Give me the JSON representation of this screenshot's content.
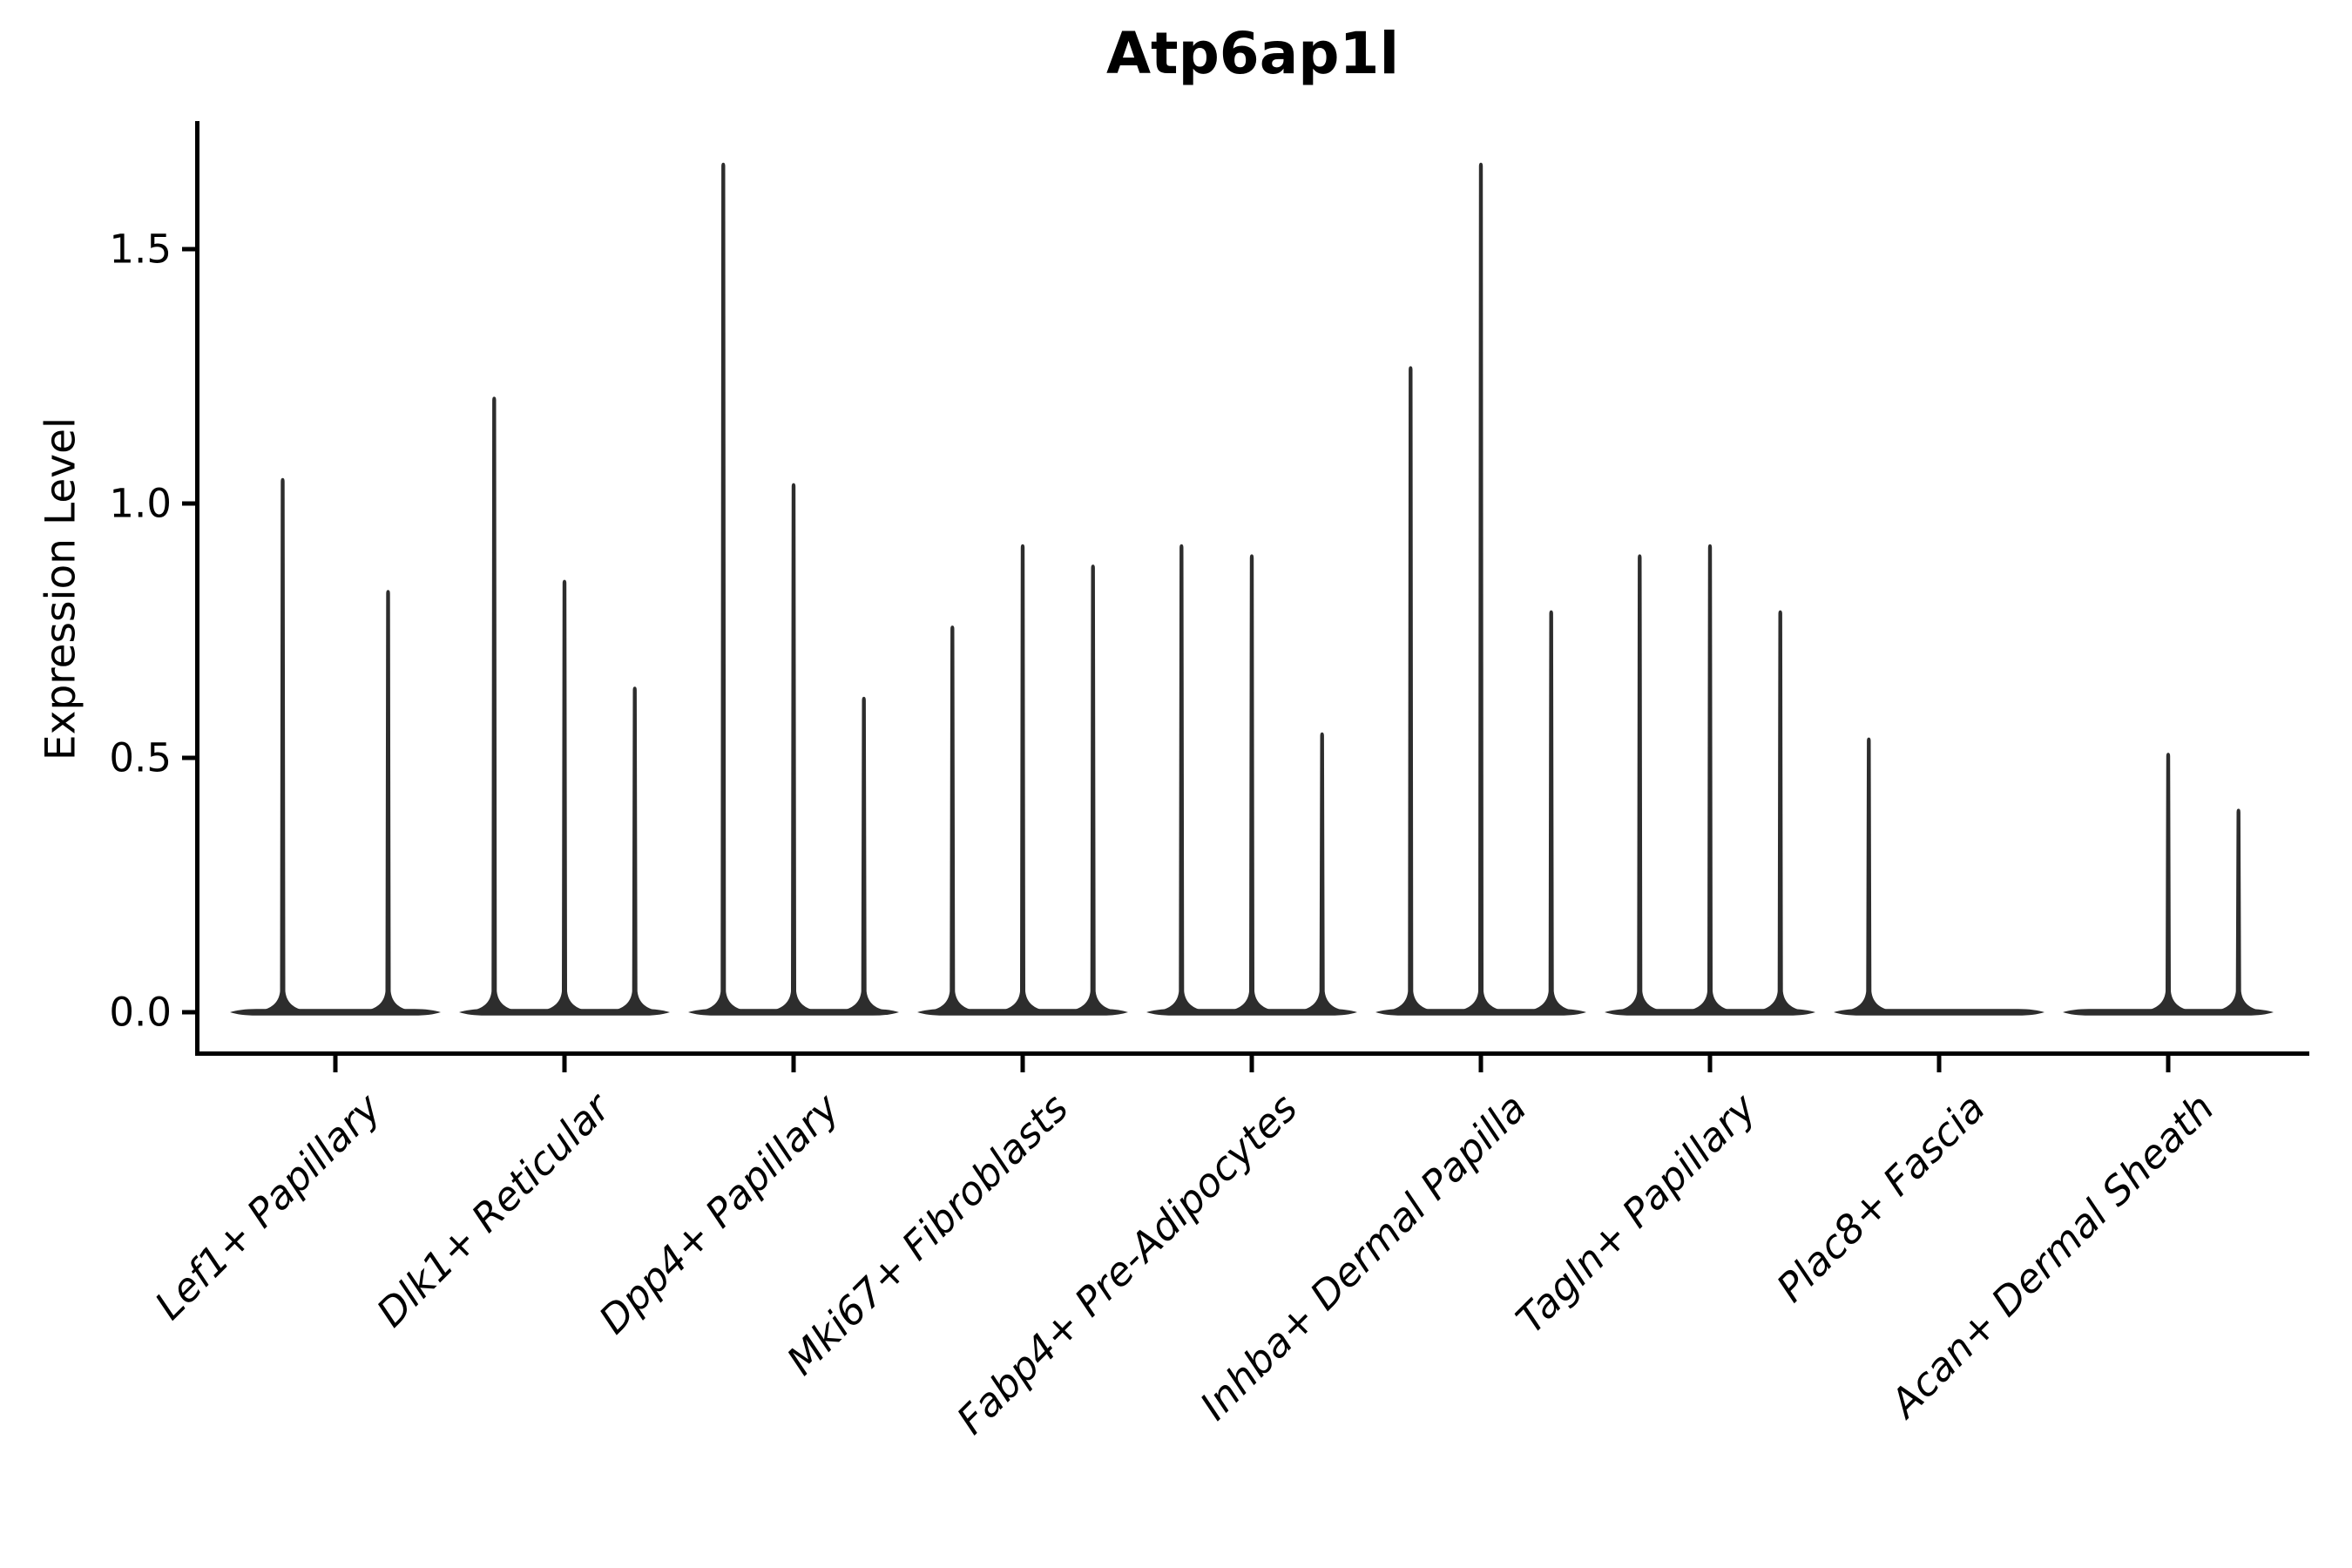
{
  "chart_data": {
    "type": "violin",
    "title": "Atp6ap1l",
    "ylabel": "Expression Level",
    "xlabel": "",
    "grid": false,
    "legend": "none",
    "ylim": [
      0,
      1.75
    ],
    "yticks": [
      {
        "value": 0.0,
        "label": "0.0"
      },
      {
        "value": 0.5,
        "label": "0.5"
      },
      {
        "value": 1.0,
        "label": "1.0"
      },
      {
        "value": 1.5,
        "label": "1.5"
      }
    ],
    "categories": [
      "Lef1+ Papillary",
      "Dlk1+ Reticular",
      "Dpp4+ Papillary",
      "Mki67+ Fibroblasts",
      "Fabp4+ Pre-Adipocytes",
      "Inhba+ Dermal Papilla",
      "Tagln+ Papillary",
      "Plac8+ Fascia",
      "Acan+ Dermal Sheath"
    ],
    "groups": [
      {
        "category": "Lef1+ Papillary",
        "violins": [
          {
            "dx": -60.5,
            "max": 1.05
          },
          {
            "dx": 60.5,
            "max": 0.83
          }
        ]
      },
      {
        "category": "Dlk1+ Reticular",
        "violins": [
          {
            "dx": -80.7,
            "max": 1.21
          },
          {
            "dx": 0,
            "max": 0.85
          },
          {
            "dx": 80.7,
            "max": 0.64
          }
        ]
      },
      {
        "category": "Dpp4+ Papillary",
        "violins": [
          {
            "dx": -80.7,
            "max": 1.67
          },
          {
            "dx": 0,
            "max": 1.04
          },
          {
            "dx": 80.7,
            "max": 0.62
          }
        ]
      },
      {
        "category": "Mki67+ Fibroblasts",
        "violins": [
          {
            "dx": -80.7,
            "max": 0.76
          },
          {
            "dx": 0,
            "max": 0.92
          },
          {
            "dx": 80.7,
            "max": 0.88
          }
        ]
      },
      {
        "category": "Fabp4+ Pre-Adipocytes",
        "violins": [
          {
            "dx": -80.7,
            "max": 0.92
          },
          {
            "dx": 0,
            "max": 0.9
          },
          {
            "dx": 80.7,
            "max": 0.55
          }
        ]
      },
      {
        "category": "Inhba+ Dermal Papilla",
        "violins": [
          {
            "dx": -80.7,
            "max": 1.27
          },
          {
            "dx": 0,
            "max": 1.67
          },
          {
            "dx": 80.7,
            "max": 0.79
          }
        ]
      },
      {
        "category": "Tagln+ Papillary",
        "violins": [
          {
            "dx": -80.7,
            "max": 0.9
          },
          {
            "dx": 0,
            "max": 0.92
          },
          {
            "dx": 80.7,
            "max": 0.79
          }
        ]
      },
      {
        "category": "Plac8+ Fascia",
        "violins": [
          {
            "dx": -80.7,
            "max": 0.54
          }
        ]
      },
      {
        "category": "Acan+ Dermal Sheath",
        "violins": [
          {
            "dx": 0,
            "max": 0.51
          },
          {
            "dx": 80.7,
            "max": 0.4
          }
        ]
      }
    ],
    "colors": {
      "violin": "#2d2d2d",
      "axis": "#000000",
      "text": "#000000",
      "background": "#ffffff"
    }
  }
}
